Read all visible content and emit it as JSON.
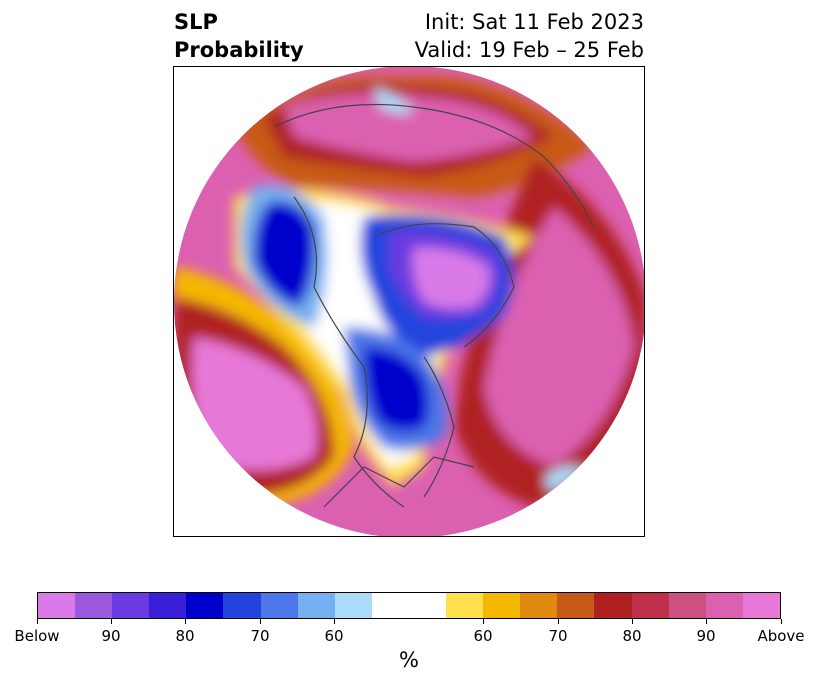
{
  "title": {
    "left_line1": "SLP",
    "left_line2": "Probability",
    "right_line1": "Init: Sat 11 Feb 2023",
    "right_line2": "Valid: 19 Feb – 25 Feb"
  },
  "colorbar": {
    "colors": [
      "#d97ae8",
      "#9b59e0",
      "#6a3be0",
      "#3a1ed8",
      "#0000cc",
      "#2244dd",
      "#4d77e8",
      "#77b0f0",
      "#aadcfa",
      "#ffffff",
      "#ffe14d",
      "#f5b800",
      "#e08a10",
      "#c85a18",
      "#b02020",
      "#c0304a",
      "#cc5080",
      "#dc60b0",
      "#e878d8"
    ],
    "tick_labels": [
      "Below",
      "90",
      "80",
      "70",
      "60",
      "60",
      "70",
      "80",
      "90",
      "Above"
    ],
    "unit": "%"
  },
  "map": {
    "projection": "north-polar-stereographic",
    "field": "sea-level-pressure-probability"
  }
}
